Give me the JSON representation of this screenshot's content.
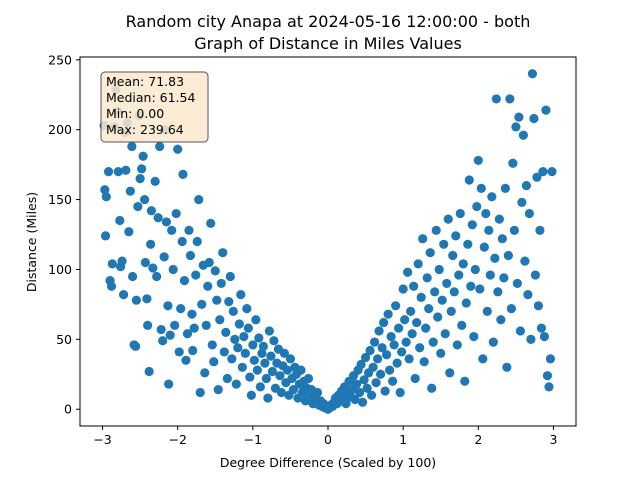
{
  "chart_data": {
    "type": "scatter",
    "title_line1": "Random city Anapa at 2024-05-16 12:00:00  - both",
    "title_line2": "Graph of Distance in Miles Values",
    "xlabel": "Degree Difference (Scaled by 100)",
    "ylabel": "Distance (Miles)",
    "xlim": [
      -3.3,
      3.3
    ],
    "ylim": [
      -12,
      252
    ],
    "xticks": [
      -3,
      -2,
      -1,
      0,
      1,
      2,
      3
    ],
    "yticks": [
      0,
      50,
      100,
      150,
      200,
      250
    ],
    "marker_color": "#1f77b4",
    "stats_box": {
      "mean": "Mean: 71.83",
      "median": "Median: 61.54",
      "min": "Min: 0.00",
      "max": "Max: 239.64",
      "facecolor": "#fbe9cf",
      "edgecolor": "#555555"
    },
    "points": [
      [
        -2.98,
        203
      ],
      [
        -2.97,
        157
      ],
      [
        -2.95,
        152
      ],
      [
        -2.96,
        124
      ],
      [
        -2.92,
        170
      ],
      [
        -2.9,
        92
      ],
      [
        -2.88,
        88
      ],
      [
        -2.87,
        104
      ],
      [
        -2.84,
        202
      ],
      [
        -2.82,
        229
      ],
      [
        -2.8,
        213
      ],
      [
        -2.79,
        170
      ],
      [
        -2.77,
        135
      ],
      [
        -2.76,
        102
      ],
      [
        -2.74,
        106
      ],
      [
        -2.72,
        82
      ],
      [
        -2.7,
        198
      ],
      [
        -2.69,
        171
      ],
      [
        -2.67,
        205
      ],
      [
        -2.65,
        127
      ],
      [
        -2.63,
        156
      ],
      [
        -2.61,
        188
      ],
      [
        -2.6,
        95
      ],
      [
        -2.58,
        46
      ],
      [
        -2.56,
        45
      ],
      [
        -2.55,
        78
      ],
      [
        -2.53,
        145
      ],
      [
        -2.51,
        210
      ],
      [
        -2.5,
        165
      ],
      [
        -2.48,
        172
      ],
      [
        -2.46,
        181
      ],
      [
        -2.44,
        150
      ],
      [
        -2.43,
        105
      ],
      [
        -2.41,
        79
      ],
      [
        -2.4,
        60
      ],
      [
        -2.38,
        27
      ],
      [
        -2.36,
        118
      ],
      [
        -2.35,
        142
      ],
      [
        -2.33,
        101
      ],
      [
        -2.3,
        163
      ],
      [
        -2.28,
        95
      ],
      [
        -2.26,
        137
      ],
      [
        -2.24,
        188
      ],
      [
        -2.22,
        57
      ],
      [
        -2.2,
        49
      ],
      [
        -2.18,
        109
      ],
      [
        -2.17,
        200
      ],
      [
        -2.15,
        134
      ],
      [
        -2.13,
        74
      ],
      [
        -2.12,
        18
      ],
      [
        -2.1,
        53
      ],
      [
        -2.08,
        128
      ],
      [
        -2.06,
        100
      ],
      [
        -2.04,
        60
      ],
      [
        -2.02,
        140
      ],
      [
        -2.0,
        186
      ],
      [
        -1.98,
        41
      ],
      [
        -1.96,
        72
      ],
      [
        -1.94,
        120
      ],
      [
        -1.93,
        168
      ],
      [
        -1.91,
        92
      ],
      [
        -1.89,
        35
      ],
      [
        -1.87,
        54
      ],
      [
        -1.85,
        128
      ],
      [
        -1.83,
        110
      ],
      [
        -1.81,
        68
      ],
      [
        -1.8,
        42
      ],
      [
        -1.78,
        58
      ],
      [
        -1.76,
        96
      ],
      [
        -1.74,
        120
      ],
      [
        -1.72,
        150
      ],
      [
        -1.7,
        12
      ],
      [
        -1.68,
        75
      ],
      [
        -1.66,
        103
      ],
      [
        -1.64,
        26
      ],
      [
        -1.62,
        60
      ],
      [
        -1.6,
        88
      ],
      [
        -1.58,
        105
      ],
      [
        -1.56,
        133
      ],
      [
        -1.54,
        46
      ],
      [
        -1.52,
        34
      ],
      [
        -1.5,
        99
      ],
      [
        -1.48,
        78
      ],
      [
        -1.46,
        14
      ],
      [
        -1.44,
        64
      ],
      [
        -1.42,
        90
      ],
      [
        -1.4,
        112
      ],
      [
        -1.38,
        41
      ],
      [
        -1.36,
        55
      ],
      [
        -1.34,
        22
      ],
      [
        -1.32,
        77
      ],
      [
        -1.3,
        95
      ],
      [
        -1.28,
        36
      ],
      [
        -1.26,
        70
      ],
      [
        -1.24,
        50
      ],
      [
        -1.22,
        18
      ],
      [
        -1.2,
        44
      ],
      [
        -1.18,
        61
      ],
      [
        -1.16,
        82
      ],
      [
        -1.14,
        30
      ],
      [
        -1.12,
        52
      ],
      [
        -1.1,
        40
      ],
      [
        -1.08,
        72
      ],
      [
        -1.06,
        58
      ],
      [
        -1.04,
        23
      ],
      [
        -1.02,
        10
      ],
      [
        -1.0,
        46
      ],
      [
        -0.98,
        35
      ],
      [
        -0.96,
        64
      ],
      [
        -0.94,
        28
      ],
      [
        -0.92,
        51
      ],
      [
        -0.9,
        16
      ],
      [
        -0.88,
        40
      ],
      [
        -0.86,
        45
      ],
      [
        -0.84,
        33
      ],
      [
        -0.82,
        22
      ],
      [
        -0.8,
        8
      ],
      [
        -0.78,
        56
      ],
      [
        -0.76,
        38
      ],
      [
        -0.74,
        27
      ],
      [
        -0.72,
        49
      ],
      [
        -0.7,
        15
      ],
      [
        -0.68,
        33
      ],
      [
        -0.66,
        43
      ],
      [
        -0.64,
        24
      ],
      [
        -0.62,
        12
      ],
      [
        -0.6,
        31
      ],
      [
        -0.58,
        40
      ],
      [
        -0.56,
        19
      ],
      [
        -0.54,
        28
      ],
      [
        -0.52,
        10
      ],
      [
        -0.5,
        36
      ],
      [
        -0.48,
        22
      ],
      [
        -0.46,
        14
      ],
      [
        -0.44,
        30
      ],
      [
        -0.42,
        25
      ],
      [
        -0.4,
        8
      ],
      [
        -0.38,
        18
      ],
      [
        -0.36,
        28
      ],
      [
        -0.34,
        12
      ],
      [
        -0.32,
        20
      ],
      [
        -0.3,
        6
      ],
      [
        -0.28,
        15
      ],
      [
        -0.26,
        22
      ],
      [
        -0.24,
        9
      ],
      [
        -0.22,
        14
      ],
      [
        -0.2,
        4
      ],
      [
        -0.18,
        10
      ],
      [
        -0.16,
        7
      ],
      [
        -0.14,
        12
      ],
      [
        -0.12,
        3
      ],
      [
        -0.1,
        6
      ],
      [
        -0.08,
        2
      ],
      [
        -0.06,
        4
      ],
      [
        -0.04,
        1
      ],
      [
        -0.02,
        2
      ],
      [
        0.0,
        0
      ],
      [
        0.02,
        1
      ],
      [
        0.04,
        3
      ],
      [
        0.06,
        2
      ],
      [
        0.08,
        5
      ],
      [
        0.1,
        8
      ],
      [
        0.12,
        4
      ],
      [
        0.14,
        10
      ],
      [
        0.16,
        6
      ],
      [
        0.18,
        13
      ],
      [
        0.2,
        8
      ],
      [
        0.22,
        16
      ],
      [
        0.24,
        4
      ],
      [
        0.26,
        11
      ],
      [
        0.28,
        20
      ],
      [
        0.3,
        9
      ],
      [
        0.32,
        14
      ],
      [
        0.34,
        24
      ],
      [
        0.36,
        7
      ],
      [
        0.38,
        18
      ],
      [
        0.4,
        28
      ],
      [
        0.42,
        12
      ],
      [
        0.44,
        32
      ],
      [
        0.46,
        5
      ],
      [
        0.48,
        21
      ],
      [
        0.5,
        37
      ],
      [
        0.52,
        15
      ],
      [
        0.54,
        26
      ],
      [
        0.56,
        42
      ],
      [
        0.58,
        10
      ],
      [
        0.6,
        30
      ],
      [
        0.62,
        48
      ],
      [
        0.64,
        19
      ],
      [
        0.66,
        36
      ],
      [
        0.68,
        56
      ],
      [
        0.7,
        25
      ],
      [
        0.72,
        44
      ],
      [
        0.74,
        62
      ],
      [
        0.76,
        13
      ],
      [
        0.78,
        39
      ],
      [
        0.8,
        68
      ],
      [
        0.82,
        28
      ],
      [
        0.84,
        52
      ],
      [
        0.86,
        20
      ],
      [
        0.88,
        46
      ],
      [
        0.9,
        74
      ],
      [
        0.92,
        33
      ],
      [
        0.94,
        58
      ],
      [
        0.96,
        12
      ],
      [
        0.98,
        41
      ],
      [
        1.0,
        86
      ],
      [
        1.02,
        64
      ],
      [
        1.04,
        48
      ],
      [
        1.06,
        98
      ],
      [
        1.08,
        36
      ],
      [
        1.1,
        70
      ],
      [
        1.12,
        54
      ],
      [
        1.14,
        88
      ],
      [
        1.16,
        22
      ],
      [
        1.18,
        62
      ],
      [
        1.2,
        104
      ],
      [
        1.22,
        44
      ],
      [
        1.24,
        80
      ],
      [
        1.26,
        122
      ],
      [
        1.28,
        34
      ],
      [
        1.3,
        58
      ],
      [
        1.32,
        94
      ],
      [
        1.34,
        72
      ],
      [
        1.36,
        112
      ],
      [
        1.38,
        15
      ],
      [
        1.4,
        48
      ],
      [
        1.42,
        84
      ],
      [
        1.44,
        128
      ],
      [
        1.46,
        66
      ],
      [
        1.48,
        100
      ],
      [
        1.5,
        40
      ],
      [
        1.52,
        78
      ],
      [
        1.54,
        118
      ],
      [
        1.56,
        54
      ],
      [
        1.58,
        90
      ],
      [
        1.6,
        136
      ],
      [
        1.62,
        26
      ],
      [
        1.64,
        70
      ],
      [
        1.66,
        110
      ],
      [
        1.68,
        84
      ],
      [
        1.7,
        124
      ],
      [
        1.72,
        46
      ],
      [
        1.74,
        96
      ],
      [
        1.76,
        140
      ],
      [
        1.78,
        60
      ],
      [
        1.8,
        104
      ],
      [
        1.82,
        20
      ],
      [
        1.84,
        76
      ],
      [
        1.86,
        118
      ],
      [
        1.88,
        164
      ],
      [
        1.9,
        88
      ],
      [
        1.92,
        132
      ],
      [
        1.94,
        52
      ],
      [
        1.96,
        100
      ],
      [
        1.98,
        145
      ],
      [
        2.0,
        178
      ],
      [
        2.02,
        86
      ],
      [
        2.04,
        158
      ],
      [
        2.06,
        36
      ],
      [
        2.08,
        116
      ],
      [
        2.1,
        140
      ],
      [
        2.12,
        70
      ],
      [
        2.14,
        128
      ],
      [
        2.16,
        96
      ],
      [
        2.18,
        152
      ],
      [
        2.2,
        48
      ],
      [
        2.22,
        108
      ],
      [
        2.24,
        222
      ],
      [
        2.26,
        84
      ],
      [
        2.28,
        136
      ],
      [
        2.3,
        64
      ],
      [
        2.32,
        122
      ],
      [
        2.34,
        94
      ],
      [
        2.36,
        158
      ],
      [
        2.38,
        30
      ],
      [
        2.4,
        110
      ],
      [
        2.42,
        222
      ],
      [
        2.44,
        72
      ],
      [
        2.46,
        176
      ],
      [
        2.48,
        128
      ],
      [
        2.5,
        202
      ],
      [
        2.52,
        90
      ],
      [
        2.54,
        209
      ],
      [
        2.56,
        56
      ],
      [
        2.58,
        148
      ],
      [
        2.6,
        196
      ],
      [
        2.62,
        106
      ],
      [
        2.64,
        160
      ],
      [
        2.66,
        82
      ],
      [
        2.68,
        140
      ],
      [
        2.7,
        50
      ],
      [
        2.72,
        240
      ],
      [
        2.74,
        208
      ],
      [
        2.76,
        96
      ],
      [
        2.78,
        166
      ],
      [
        2.8,
        74
      ],
      [
        2.82,
        128
      ],
      [
        2.84,
        58
      ],
      [
        2.86,
        170
      ],
      [
        2.88,
        52
      ],
      [
        2.9,
        214
      ],
      [
        2.92,
        24
      ],
      [
        2.94,
        16
      ],
      [
        2.96,
        36
      ],
      [
        2.98,
        170
      ]
    ]
  }
}
